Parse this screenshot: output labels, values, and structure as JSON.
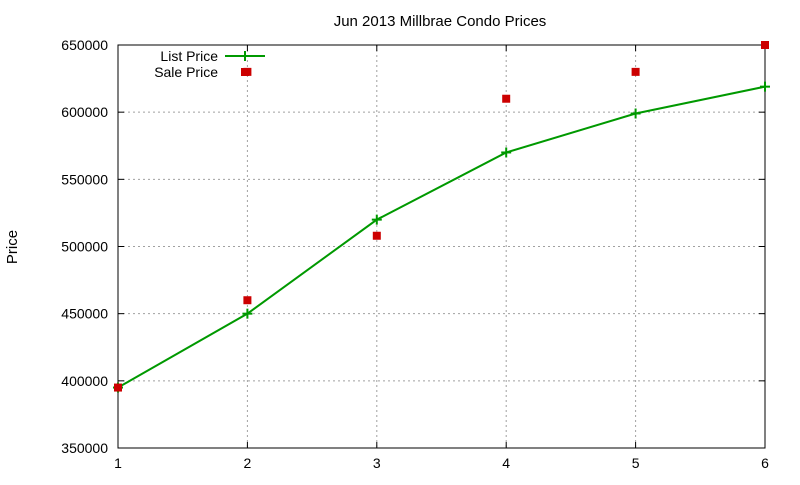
{
  "chart_data": {
    "type": "line",
    "title": "Jun 2013 Millbrae Condo Prices",
    "xlabel": "",
    "ylabel": "Price",
    "x": [
      1,
      2,
      3,
      4,
      5,
      6
    ],
    "xlim": [
      1,
      6
    ],
    "ylim": [
      350000,
      650000
    ],
    "xticks": [
      1,
      2,
      3,
      4,
      5,
      6
    ],
    "yticks": [
      350000,
      400000,
      450000,
      500000,
      550000,
      600000,
      650000
    ],
    "grid": true,
    "legend_position": "top-left",
    "series": [
      {
        "name": "List Price",
        "style": "linespoints",
        "marker": "plus",
        "color": "#009900",
        "values": [
          395000,
          450000,
          520000,
          570000,
          599000,
          619000
        ]
      },
      {
        "name": "Sale Price",
        "style": "points",
        "marker": "square",
        "color": "#cc0000",
        "values": [
          395000,
          460000,
          508000,
          610000,
          630000,
          650000
        ]
      }
    ],
    "extra_points": [
      {
        "series": "Sale Price",
        "x": 2,
        "y": 630000
      }
    ]
  }
}
